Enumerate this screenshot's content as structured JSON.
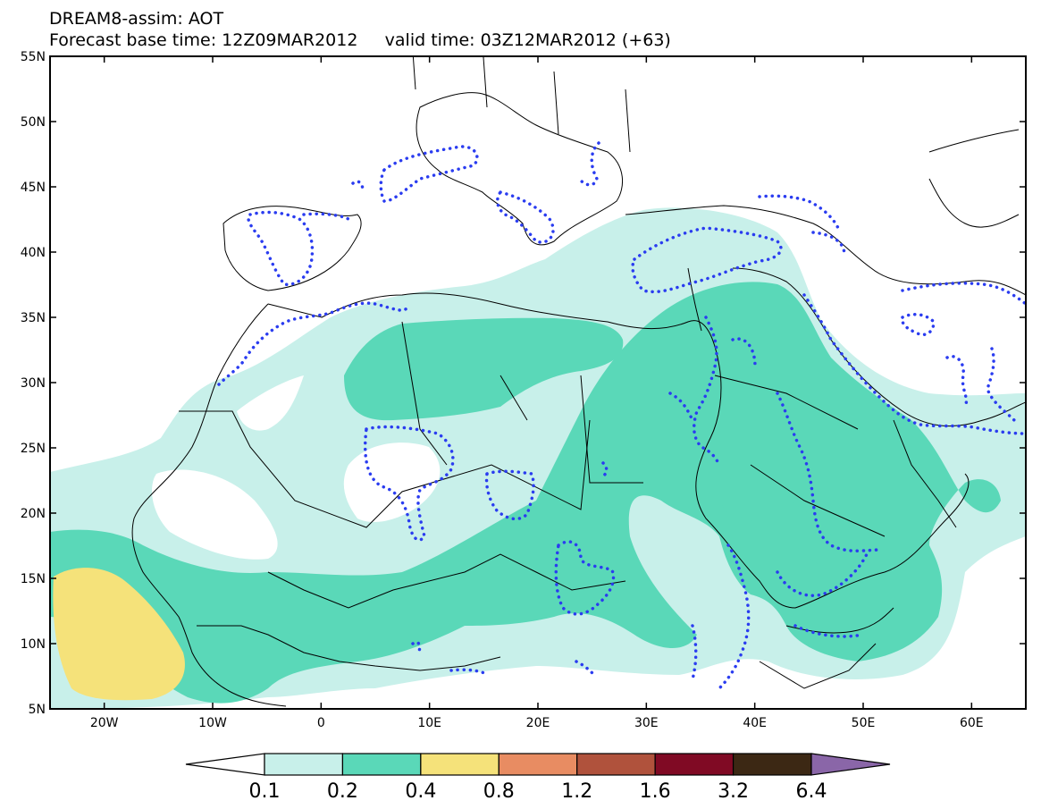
{
  "title": {
    "line1": "DREAM8-assim: AOT",
    "line2_base": "Forecast base time: 12Z09MAR2012",
    "line2_valid": "valid time: 03Z12MAR2012 (+63)"
  },
  "map": {
    "lon_range": [
      -25,
      65
    ],
    "lat_range": [
      5,
      55
    ],
    "lat_ticks": [
      {
        "value": 55,
        "label": "55N"
      },
      {
        "value": 50,
        "label": "50N"
      },
      {
        "value": 45,
        "label": "45N"
      },
      {
        "value": 40,
        "label": "40N"
      },
      {
        "value": 35,
        "label": "35N"
      },
      {
        "value": 30,
        "label": "30N"
      },
      {
        "value": 25,
        "label": "25N"
      },
      {
        "value": 20,
        "label": "20N"
      },
      {
        "value": 15,
        "label": "15N"
      },
      {
        "value": 10,
        "label": "10N"
      },
      {
        "value": 5,
        "label": "5N"
      }
    ],
    "lon_ticks": [
      {
        "value": -20,
        "label": "20W"
      },
      {
        "value": -10,
        "label": "10W"
      },
      {
        "value": 0,
        "label": "0"
      },
      {
        "value": 10,
        "label": "10E"
      },
      {
        "value": 20,
        "label": "20E"
      },
      {
        "value": 30,
        "label": "30E"
      },
      {
        "value": 40,
        "label": "40E"
      },
      {
        "value": 50,
        "label": "50E"
      },
      {
        "value": 60,
        "label": "60E"
      }
    ]
  },
  "colorbar": {
    "colors": [
      "#ffffff",
      "#c8f0ea",
      "#5ad8b8",
      "#f5e27a",
      "#e88c62",
      "#b0523c",
      "#800a24",
      "#3c2814",
      "#8a66a8"
    ],
    "labels": [
      "0.1",
      "0.2",
      "0.4",
      "0.8",
      "1.2",
      "1.6",
      "3.2",
      "6.4"
    ]
  },
  "legend_colors": {
    "contour_dots": "#2a3cf0",
    "coastline": "#000000"
  }
}
